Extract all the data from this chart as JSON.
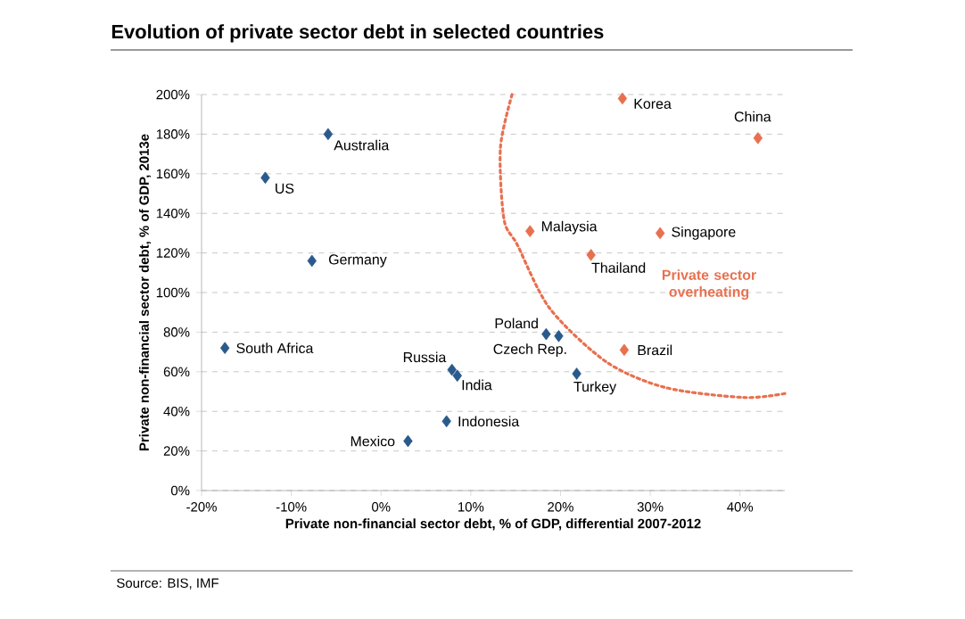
{
  "chart_data": {
    "type": "scatter",
    "title": "Evolution of private sector debt in selected countries",
    "xlabel": "Private non-financial sector debt, % of GDP, differential 2007-2012",
    "ylabel": "Private non-financial sector debt, % of GDP, 2013e",
    "xlim": [
      -20,
      45
    ],
    "ylim": [
      0,
      200
    ],
    "xticks": [
      {
        "value": -20,
        "label": "-20%"
      },
      {
        "value": -10,
        "label": "-10%"
      },
      {
        "value": 0,
        "label": "0%"
      },
      {
        "value": 10,
        "label": "10%"
      },
      {
        "value": 20,
        "label": "20%"
      },
      {
        "value": 30,
        "label": "30%"
      },
      {
        "value": 40,
        "label": "40%"
      }
    ],
    "yticks": [
      {
        "value": 0,
        "label": "0%"
      },
      {
        "value": 20,
        "label": "20%"
      },
      {
        "value": 40,
        "label": "40%"
      },
      {
        "value": 60,
        "label": "60%"
      },
      {
        "value": 80,
        "label": "80%"
      },
      {
        "value": 100,
        "label": "100%"
      },
      {
        "value": 120,
        "label": "120%"
      },
      {
        "value": 140,
        "label": "140%"
      },
      {
        "value": 160,
        "label": "160%"
      },
      {
        "value": 180,
        "label": "180%"
      },
      {
        "value": 200,
        "label": "200%"
      }
    ],
    "grid": "y",
    "marker": "diamond",
    "series": [
      {
        "color": "#2a5a8c",
        "x": [
          -5.9,
          -12.9,
          -7.7,
          -17.4,
          7.9,
          8.5,
          3,
          7.3,
          18.4,
          19.8,
          21.8
        ],
        "values": [
          180,
          158,
          116,
          72,
          61,
          58,
          25,
          35,
          79,
          78,
          59
        ]
      },
      {
        "color": "#e8704f",
        "x": [
          27.1,
          26.9,
          42,
          16.6,
          31.1,
          23.4
        ],
        "values": [
          71,
          198,
          178,
          131,
          130,
          119
        ]
      },
      {
        "type": "line",
        "line_style": "dotted",
        "marker": "none",
        "color": "#e8704f",
        "x": [
          14.6,
          13.3,
          13.7,
          15.2,
          18.8,
          25.1,
          31.7,
          40.4,
          45
        ],
        "values": [
          200,
          173,
          137,
          124,
          92,
          65,
          52,
          47,
          49
        ]
      }
    ],
    "annotations": [
      {
        "text": "Australia",
        "x": -5.9,
        "y": 180
      },
      {
        "text": "US",
        "x": -12.9,
        "y": 158
      },
      {
        "text": "Germany",
        "x": -7.7,
        "y": 116
      },
      {
        "text": "South Africa",
        "x": -17.4,
        "y": 72
      },
      {
        "text": "Russia",
        "x": 7.9,
        "y": 61
      },
      {
        "text": "India",
        "x": 8.5,
        "y": 58
      },
      {
        "text": "Mexico",
        "x": 3,
        "y": 25
      },
      {
        "text": "Indonesia",
        "x": 7.3,
        "y": 35
      },
      {
        "text": "Poland",
        "x": 18.4,
        "y": 79
      },
      {
        "text": "Czech Rep.",
        "x": 19.8,
        "y": 78
      },
      {
        "text": "Turkey",
        "x": 21.8,
        "y": 59
      },
      {
        "text": "Brazil",
        "x": 27.1,
        "y": 71
      },
      {
        "text": "Korea",
        "x": 26.9,
        "y": 198
      },
      {
        "text": "China",
        "x": 42,
        "y": 178
      },
      {
        "text": "Malaysia",
        "x": 16.6,
        "y": 131
      },
      {
        "text": "Singapore",
        "x": 31.1,
        "y": 130
      },
      {
        "text": "Thailand",
        "x": 23.4,
        "y": 119
      },
      "Private sector overheating",
      "Source: BIS, IMF"
    ]
  }
}
